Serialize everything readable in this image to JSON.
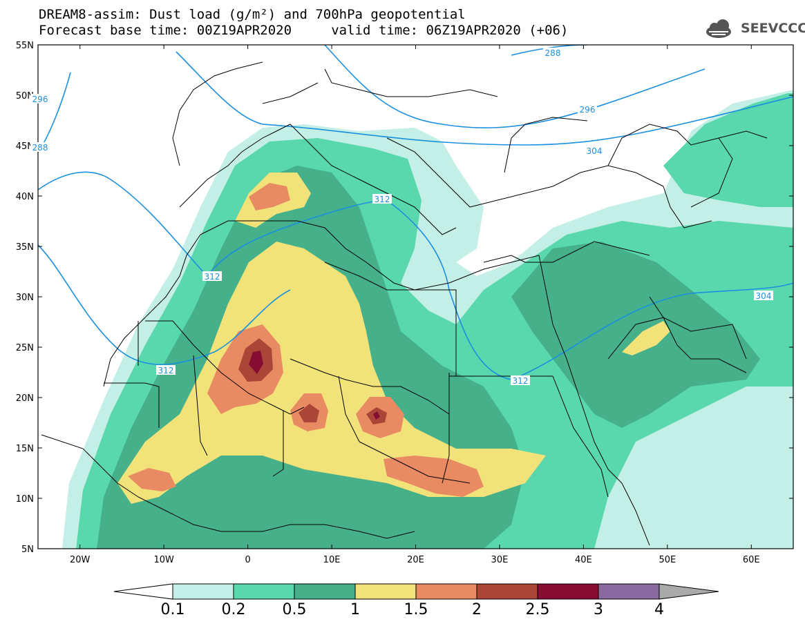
{
  "title": {
    "line1": "DREAM8-assim: Dust load (g/m²) and 700hPa geopotential",
    "line2": "Forecast base time: 00Z19APR2020     valid time: 06Z19APR2020 (+06)"
  },
  "logo": {
    "text": "SEEVCCC",
    "icon": "cloud-icon"
  },
  "axes": {
    "lat_labels": [
      "55N",
      "50N",
      "45N",
      "40N",
      "35N",
      "30N",
      "25N",
      "20N",
      "15N",
      "10N",
      "5N"
    ],
    "lon_labels": [
      "20W",
      "10W",
      "0",
      "10E",
      "20E",
      "30E",
      "40E",
      "50E",
      "60E"
    ],
    "lat_range": [
      5,
      55
    ],
    "lon_range": [
      -25,
      65
    ]
  },
  "colorbar": {
    "labels": [
      "0.1",
      "0.2",
      "0.5",
      "1",
      "1.5",
      "2",
      "2.5",
      "3",
      "4"
    ],
    "colors": [
      "#c4efe6",
      "#5ad8ad",
      "#45b089",
      "#f2e27a",
      "#e88b62",
      "#ab4538",
      "#860d32",
      "#8a6a9e"
    ],
    "under_color": "#ffffff",
    "over_color": "#aaaaaa"
  },
  "isolines": {
    "color": "#1a8fe0",
    "labels": [
      "288",
      "296",
      "304",
      "312",
      "312",
      "312",
      "304",
      "312",
      "296",
      "288"
    ]
  }
}
